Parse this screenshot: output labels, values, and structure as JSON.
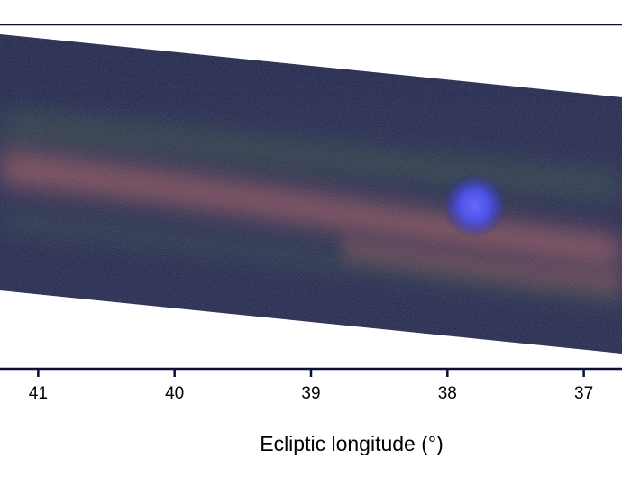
{
  "chart_data": {
    "type": "heatmap",
    "title": "",
    "xlabel": "Ecliptic longitude (°)",
    "ylabel": "",
    "x_axis_reversed": true,
    "xlim": [
      41.28,
      36.72
    ],
    "x_ticks": [
      41,
      40,
      39,
      38,
      37
    ],
    "x_tick_labels": [
      "41",
      "40",
      "39",
      "38",
      "37"
    ],
    "grid": false,
    "legend": "none",
    "image_description_colors": {
      "background": "#1c2148",
      "dust_band": "#a0585a",
      "faint_green": "#3a5a3e",
      "source": "#5a5cff",
      "frame": "#0b0f3a"
    },
    "bright_source_longitude": 37.8
  }
}
